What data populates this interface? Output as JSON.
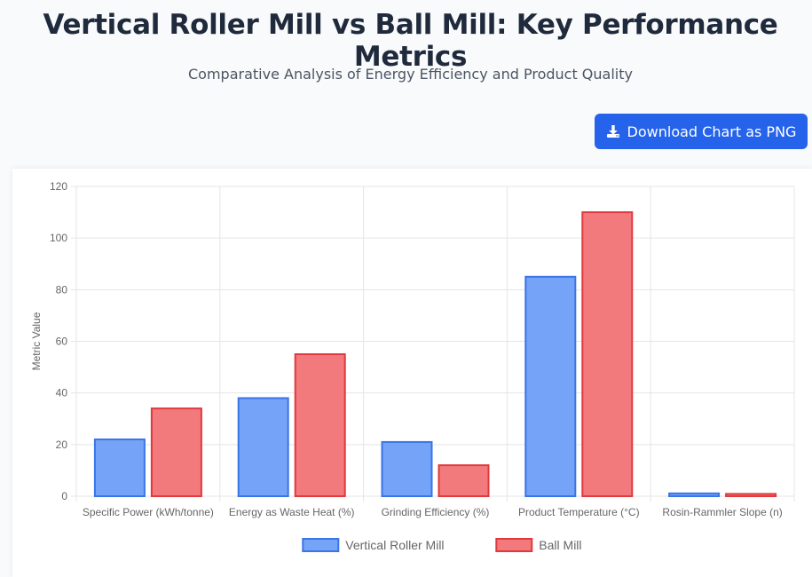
{
  "header": {
    "title": "Vertical Roller Mill vs Ball Mill: Key Performance Metrics",
    "subtitle": "Comparative Analysis of Energy Efficiency and Product Quality"
  },
  "toolbar": {
    "download_label": "Download Chart as PNG",
    "download_icon": "download-icon"
  },
  "colors": {
    "accent": "#2563eb",
    "vrm_fill": "#74a3f7",
    "vrm_border": "#3b74e6",
    "ball_fill": "#f27a7c",
    "ball_border": "#e0393e"
  },
  "chart_data": {
    "type": "bar",
    "title": "",
    "xlabel": "",
    "ylabel": "Metric Value",
    "ylim": [
      0,
      120
    ],
    "yticks": [
      0,
      20,
      40,
      60,
      80,
      100,
      120
    ],
    "grid": true,
    "legend_position": "bottom",
    "categories": [
      "Specific Power (kWh/tonne)",
      "Energy as Waste Heat (%)",
      "Grinding Efficiency (%)",
      "Product Temperature (°C)",
      "Rosin-Rammler Slope (n)"
    ],
    "series": [
      {
        "name": "Vertical Roller Mill",
        "values": [
          22,
          38,
          21,
          85,
          1.1
        ]
      },
      {
        "name": "Ball Mill",
        "values": [
          34,
          55,
          12,
          110,
          0.9
        ]
      }
    ]
  }
}
